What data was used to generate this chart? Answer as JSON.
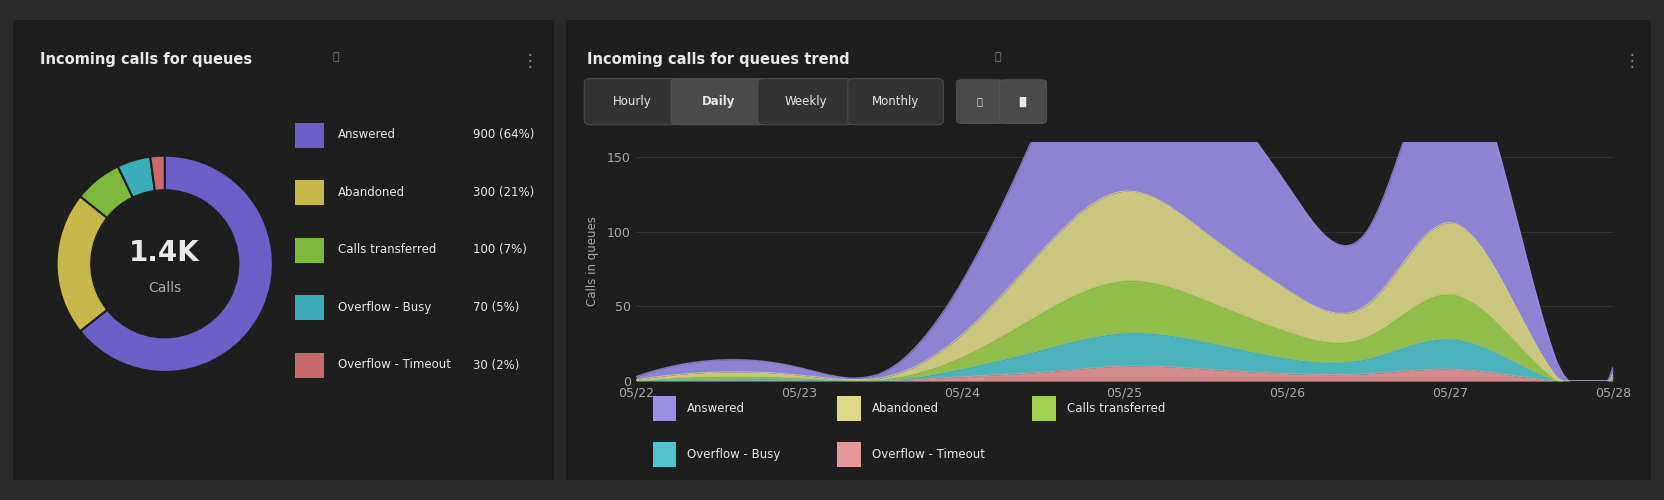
{
  "bg_color": "#2b2b2b",
  "panel_bg": "#1e1e1e",
  "donut_title": "Incoming calls for queues",
  "donut_info": "ⓘ",
  "donut_center_text": "1.4K",
  "donut_center_subtext": "Calls",
  "donut_values": [
    900,
    300,
    100,
    70,
    30
  ],
  "donut_colors": [
    "#6c5fc7",
    "#c8b84a",
    "#7db83a",
    "#3aacba",
    "#c96a6a"
  ],
  "donut_labels": [
    "Answered",
    "Abandoned",
    "Calls transferred",
    "Overflow - Busy",
    "Overflow - Timeout"
  ],
  "donut_counts": [
    "900 (64%)",
    "300 (21%)",
    "100 (7%)",
    "70 (5%)",
    "30 (2%)"
  ],
  "trend_title": "Incoming calls for queues trend",
  "trend_info": "ⓘ",
  "trend_tabs": [
    "Hourly",
    "Daily",
    "Weekly",
    "Monthly"
  ],
  "trend_active_tab": "Daily",
  "trend_ylabel": "Calls in queues",
  "trend_xlabel_dates": [
    "05/22",
    "05/23",
    "05/24",
    "05/25",
    "05/26",
    "05/27",
    "05/28"
  ],
  "trend_ylim": [
    0,
    160
  ],
  "trend_yticks": [
    0,
    50,
    100,
    150
  ],
  "trend_x": [
    0,
    0.5,
    1,
    1.5,
    2,
    2.5,
    3,
    3.5,
    4,
    4.5,
    5,
    5.5,
    6
  ],
  "trend_answered": [
    2,
    8,
    5,
    3,
    35,
    90,
    140,
    110,
    70,
    50,
    115,
    40,
    5
  ],
  "trend_abandoned": [
    1,
    3,
    2,
    1,
    15,
    42,
    60,
    45,
    28,
    22,
    48,
    15,
    2
  ],
  "trend_transferred": [
    0,
    2,
    1,
    1,
    8,
    25,
    35,
    28,
    18,
    15,
    30,
    8,
    1
  ],
  "trend_overflow_busy": [
    0,
    1,
    1,
    0,
    5,
    15,
    22,
    18,
    10,
    10,
    20,
    5,
    1
  ],
  "trend_overflow_timeout": [
    0,
    0,
    0,
    0,
    3,
    6,
    10,
    8,
    5,
    5,
    8,
    2,
    0
  ],
  "trend_colors": {
    "answered": "#9b8fe8",
    "abandoned": "#dfd98a",
    "transferred": "#9ecf50",
    "overflow_busy": "#52c4d0",
    "overflow_timeout": "#e89898"
  },
  "text_color": "#e8e8e8",
  "text_color_muted": "#888888",
  "text_color_dim": "#aaaaaa",
  "grid_color": "#3a3a3a",
  "tab_bg": "#333333",
  "tab_active_bg": "#4a4a4a",
  "tab_border": "#555555",
  "donut_menu_color": "#888888",
  "trend_menu_color": "#888888"
}
